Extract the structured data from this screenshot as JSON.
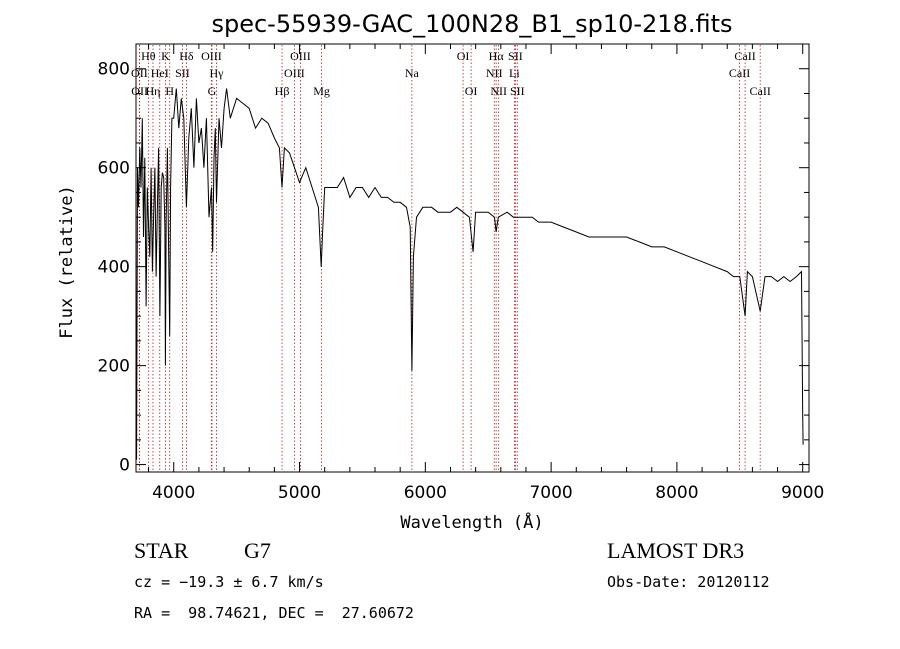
{
  "chart_data": {
    "type": "line",
    "title": "spec-55939-GAC_100N28_B1_sp10-218.fits",
    "xlabel": "Wavelength (Å)",
    "ylabel": "Flux (relative)",
    "xlim": [
      3700,
      9050
    ],
    "ylim": [
      -15,
      850
    ],
    "xticks": [
      4000,
      5000,
      6000,
      7000,
      8000,
      9000
    ],
    "yticks": [
      0,
      200,
      400,
      600,
      800
    ],
    "grid": false,
    "line_color": "#000000",
    "marker_color": "#b22222",
    "spectrum": {
      "x": [
        3700,
        3705,
        3712,
        3720,
        3730,
        3740,
        3750,
        3760,
        3770,
        3780,
        3790,
        3800,
        3810,
        3820,
        3830,
        3840,
        3850,
        3860,
        3870,
        3880,
        3890,
        3900,
        3910,
        3920,
        3930,
        3934,
        3940,
        3950,
        3960,
        3968,
        3975,
        3985,
        4000,
        4020,
        4040,
        4060,
        4080,
        4101,
        4120,
        4140,
        4160,
        4180,
        4200,
        4220,
        4240,
        4260,
        4280,
        4300,
        4310,
        4320,
        4330,
        4340,
        4360,
        4380,
        4400,
        4420,
        4450,
        4500,
        4550,
        4600,
        4650,
        4700,
        4750,
        4800,
        4840,
        4861,
        4880,
        4920,
        4960,
        5000,
        5050,
        5100,
        5150,
        5172,
        5183,
        5200,
        5250,
        5300,
        5350,
        5400,
        5450,
        5500,
        5550,
        5600,
        5650,
        5700,
        5750,
        5800,
        5850,
        5880,
        5893,
        5905,
        5930,
        5980,
        6050,
        6100,
        6150,
        6200,
        6250,
        6300,
        6350,
        6380,
        6400,
        6450,
        6500,
        6550,
        6563,
        6580,
        6650,
        6700,
        6750,
        6800,
        6850,
        6900,
        6950,
        7000,
        7100,
        7200,
        7300,
        7400,
        7500,
        7600,
        7700,
        7800,
        7900,
        8000,
        8100,
        8200,
        8300,
        8400,
        8450,
        8500,
        8542,
        8560,
        8600,
        8662,
        8700,
        8750,
        8800,
        8850,
        8900,
        8950,
        8990,
        9000,
        9003
      ],
      "y": [
        260,
        10,
        600,
        520,
        640,
        560,
        700,
        460,
        620,
        320,
        560,
        480,
        420,
        600,
        390,
        500,
        600,
        380,
        520,
        640,
        300,
        560,
        590,
        580,
        480,
        200,
        500,
        640,
        420,
        260,
        560,
        700,
        700,
        760,
        680,
        740,
        700,
        520,
        660,
        720,
        600,
        740,
        650,
        680,
        600,
        700,
        500,
        560,
        430,
        620,
        680,
        530,
        700,
        640,
        720,
        760,
        700,
        740,
        730,
        720,
        680,
        700,
        690,
        660,
        640,
        560,
        640,
        630,
        600,
        570,
        600,
        560,
        520,
        400,
        470,
        560,
        560,
        560,
        580,
        540,
        560,
        560,
        540,
        560,
        540,
        540,
        530,
        530,
        520,
        480,
        190,
        420,
        500,
        520,
        520,
        510,
        510,
        510,
        520,
        510,
        500,
        430,
        510,
        510,
        510,
        500,
        470,
        500,
        510,
        500,
        500,
        500,
        500,
        490,
        490,
        490,
        480,
        470,
        460,
        460,
        460,
        460,
        450,
        440,
        440,
        430,
        420,
        410,
        400,
        390,
        380,
        380,
        300,
        390,
        380,
        310,
        380,
        380,
        370,
        380,
        370,
        380,
        390,
        100,
        40
      ]
    },
    "line_markers": [
      {
        "label": "Hθ",
        "wavelength": 3798,
        "row": 0
      },
      {
        "label": "OII",
        "wavelength": 3727,
        "row": 1
      },
      {
        "label": "OII",
        "wavelength": 3729,
        "row": 2
      },
      {
        "label": "Hη",
        "wavelength": 3835,
        "row": 2
      },
      {
        "label": "HeI",
        "wavelength": 3889,
        "row": 1
      },
      {
        "label": "K",
        "wavelength": 3934,
        "row": 0
      },
      {
        "label": "H",
        "wavelength": 3968,
        "row": 2
      },
      {
        "label": "SII",
        "wavelength": 4069,
        "row": 1
      },
      {
        "label": "Hδ",
        "wavelength": 4101,
        "row": 0
      },
      {
        "label": "OIII",
        "wavelength": 4300,
        "row": 0
      },
      {
        "label": "Hγ",
        "wavelength": 4340,
        "row": 1
      },
      {
        "label": "G",
        "wavelength": 4304,
        "row": 2
      },
      {
        "label": "Hβ",
        "wavelength": 4861,
        "row": 2
      },
      {
        "label": "OIII",
        "wavelength": 4959,
        "row": 1
      },
      {
        "label": "OIII",
        "wavelength": 5007,
        "row": 0
      },
      {
        "label": "Mg",
        "wavelength": 5175,
        "row": 2
      },
      {
        "label": "Na",
        "wavelength": 5893,
        "row": 1
      },
      {
        "label": "OI",
        "wavelength": 6300,
        "row": 0
      },
      {
        "label": "OI",
        "wavelength": 6364,
        "row": 2
      },
      {
        "label": "Hα",
        "wavelength": 6563,
        "row": 0
      },
      {
        "label": "NII",
        "wavelength": 6548,
        "row": 1
      },
      {
        "label": "NII",
        "wavelength": 6583,
        "row": 2
      },
      {
        "label": "SII",
        "wavelength": 6716,
        "row": 0
      },
      {
        "label": "Li",
        "wavelength": 6708,
        "row": 1
      },
      {
        "label": "SII",
        "wavelength": 6731,
        "row": 2
      },
      {
        "label": "CaII",
        "wavelength": 8542,
        "row": 0
      },
      {
        "label": "CaII",
        "wavelength": 8498,
        "row": 1
      },
      {
        "label": "CaII",
        "wavelength": 8662,
        "row": 2
      }
    ]
  },
  "info": {
    "class": "STAR",
    "subclass": "G7",
    "survey": "LAMOST DR3",
    "cz": "cz = −19.3 ± 6.7 km/s",
    "obs_date": "Obs-Date: 20120112",
    "coords": "RA =  98.74621, DEC =  27.60672"
  }
}
